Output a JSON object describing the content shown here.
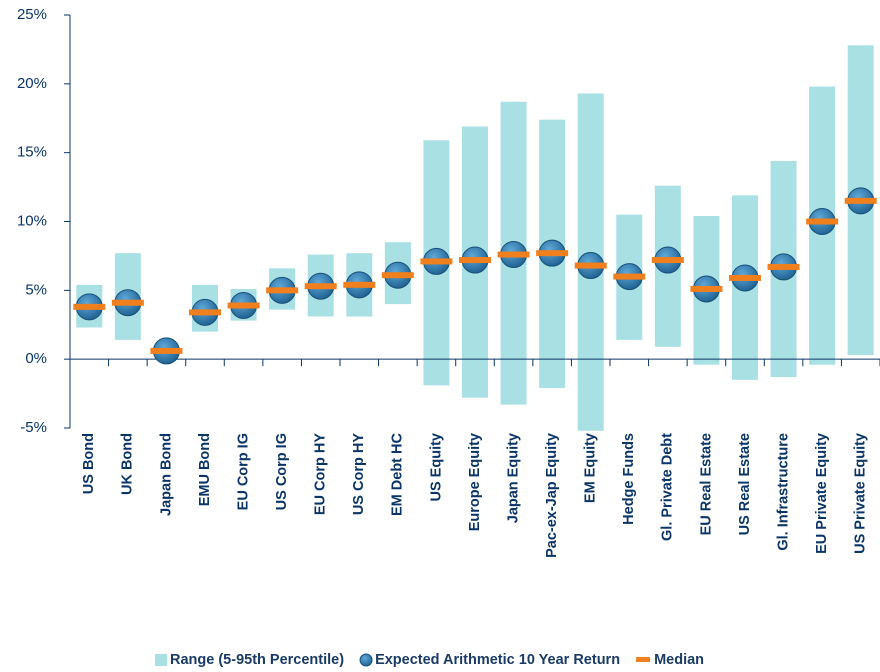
{
  "chart_data": {
    "type": "range-bar",
    "categories": [
      "US Bond",
      "UK Bond",
      "Japan Bond",
      "EMU Bond",
      "EU Corp IG",
      "US Corp IG",
      "EU Corp HY",
      "US Corp HY",
      "EM Debt HC",
      "US Equity",
      "Europe Equity",
      "Japan Equity",
      "Pac-ex-Jap Equity",
      "EM Equity",
      "Hedge Funds",
      "Gl. Private Debt",
      "EU Real Estate",
      "US Real Estate",
      "Gl. Infrastructure",
      "EU Private Equity",
      "US Private Equity"
    ],
    "series": [
      {
        "name": "Range (5-95th Percentile)",
        "color": "#a9e0e3",
        "low": [
          2.3,
          1.4,
          0.3,
          2.0,
          2.8,
          3.6,
          3.1,
          3.1,
          4.0,
          -1.9,
          -2.8,
          -3.3,
          -2.1,
          -5.2,
          1.4,
          0.9,
          -0.4,
          -1.5,
          -1.3,
          -0.4,
          0.3
        ],
        "high": [
          5.4,
          7.7,
          0.9,
          5.4,
          5.1,
          6.6,
          7.6,
          7.7,
          8.5,
          15.9,
          16.9,
          18.7,
          17.4,
          19.3,
          10.5,
          12.6,
          10.4,
          11.9,
          14.4,
          19.8,
          22.8
        ]
      },
      {
        "name": "Expected Arithmetic 10 Year Return",
        "color": "#2a78ad",
        "values": [
          3.8,
          4.1,
          0.6,
          3.4,
          3.9,
          5.0,
          5.3,
          5.4,
          6.1,
          7.1,
          7.2,
          7.6,
          7.7,
          6.8,
          6.0,
          7.2,
          5.1,
          5.9,
          6.7,
          10.0,
          11.5
        ]
      },
      {
        "name": "Median",
        "color": "#f07f1e",
        "values": [
          3.8,
          4.1,
          0.6,
          3.4,
          3.9,
          5.0,
          5.3,
          5.4,
          6.1,
          7.1,
          7.2,
          7.6,
          7.7,
          6.8,
          6.0,
          7.2,
          5.1,
          5.9,
          6.7,
          10.0,
          11.5
        ]
      }
    ],
    "ylim": [
      -5,
      25
    ],
    "yticks": [
      {
        "value": -5,
        "label": "-5%"
      },
      {
        "value": 0,
        "label": "0%"
      },
      {
        "value": 5,
        "label": "5%"
      },
      {
        "value": 10,
        "label": "10%"
      },
      {
        "value": 15,
        "label": "15%"
      },
      {
        "value": 20,
        "label": "20%"
      },
      {
        "value": 25,
        "label": "25%"
      }
    ]
  }
}
